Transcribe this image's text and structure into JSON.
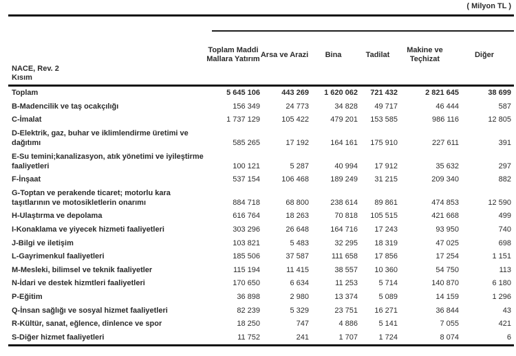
{
  "unit_label": "( Milyon TL )",
  "table": {
    "row_header": {
      "line1": "NACE, Rev. 2",
      "line2": "Kısım"
    },
    "columns": [
      "Toplam Maddi Mallara Yatırım",
      "Arsa ve Arazi",
      "Bina",
      "Tadilat",
      "Makine ve Teçhizat",
      "Diğer"
    ],
    "rows": [
      {
        "label": "Toplam",
        "bold": true,
        "values": [
          "5 645 106",
          "443 269",
          "1 620 062",
          "721 432",
          "2 821 645",
          "38 699"
        ]
      },
      {
        "label": "B-Madencilik ve taş ocakçılığı",
        "bold": false,
        "values": [
          "156 349",
          "24 773",
          "34 828",
          "49 717",
          "46 444",
          "587"
        ]
      },
      {
        "label": "C-İmalat",
        "bold": false,
        "values": [
          "1 737 129",
          "105 422",
          "479 201",
          "153 585",
          "986 116",
          "12 805"
        ]
      },
      {
        "label": "D-Elektrik, gaz, buhar ve iklimlendirme üretimi ve dağıtımı",
        "bold": false,
        "values": [
          "585 265",
          "17 192",
          "164 161",
          "175 910",
          "227 611",
          "391"
        ]
      },
      {
        "label": "E-Su temini;kanalizasyon, atık yönetimi ve iyileştirme faaliyetleri",
        "bold": false,
        "values": [
          "100 121",
          "5 287",
          "40 994",
          "17 912",
          "35 632",
          "297"
        ]
      },
      {
        "label": "F-İnşaat",
        "bold": false,
        "values": [
          "537 154",
          "106 468",
          "189 249",
          "31 215",
          "209 340",
          "882"
        ]
      },
      {
        "label": "G-Toptan ve perakende ticaret; motorlu kara taşıtlarının ve motosikletlerin onarımı",
        "bold": false,
        "values": [
          "884 718",
          "68 800",
          "238 614",
          "89 861",
          "474 853",
          "12 590"
        ]
      },
      {
        "label": "H-Ulaştırma ve depolama",
        "bold": false,
        "values": [
          "616 764",
          "18 263",
          "70 818",
          "105 515",
          "421 668",
          "499"
        ]
      },
      {
        "label": "I-Konaklama ve yiyecek hizmeti faaliyetleri",
        "bold": false,
        "values": [
          "303 296",
          "26 648",
          "164 716",
          "17 243",
          "93 950",
          "740"
        ]
      },
      {
        "label": "J-Bilgi ve iletişim",
        "bold": false,
        "values": [
          "103 821",
          "5 483",
          "32 295",
          "18 319",
          "47 025",
          "698"
        ]
      },
      {
        "label": "L-Gayrimenkul faaliyetleri",
        "bold": false,
        "values": [
          "185 506",
          "37 587",
          "111 658",
          "17 856",
          "17 254",
          "1 151"
        ]
      },
      {
        "label": "M-Mesleki, bilimsel ve teknik faaliyetler",
        "bold": false,
        "values": [
          "115 194",
          "11 415",
          "38 557",
          "10 360",
          "54 750",
          "113"
        ]
      },
      {
        "label": "N-İdari ve destek hizmtleri faaliyetleri",
        "bold": false,
        "values": [
          "170 650",
          "6 634",
          "11 253",
          "5 714",
          "140 870",
          "6 180"
        ]
      },
      {
        "label": "P-Eğitim",
        "bold": false,
        "values": [
          "36 898",
          "2 980",
          "13 374",
          "5 089",
          "14 159",
          "1 296"
        ]
      },
      {
        "label": "Q-İnsan sağlığı ve sosyal hizmet faaliyetleri",
        "bold": false,
        "values": [
          "82 239",
          "5 329",
          "23 751",
          "16 271",
          "36 844",
          "43"
        ]
      },
      {
        "label": "R-Kültür, sanat, eğlence, dinlence ve spor",
        "bold": false,
        "values": [
          "18 250",
          "747",
          "4 886",
          "5 141",
          "7 055",
          "421"
        ]
      },
      {
        "label": "S-Diğer hizmet faaliyetleri",
        "bold": false,
        "values": [
          "11 752",
          "241",
          "1 707",
          "1 724",
          "8 074",
          "6"
        ]
      }
    ]
  }
}
